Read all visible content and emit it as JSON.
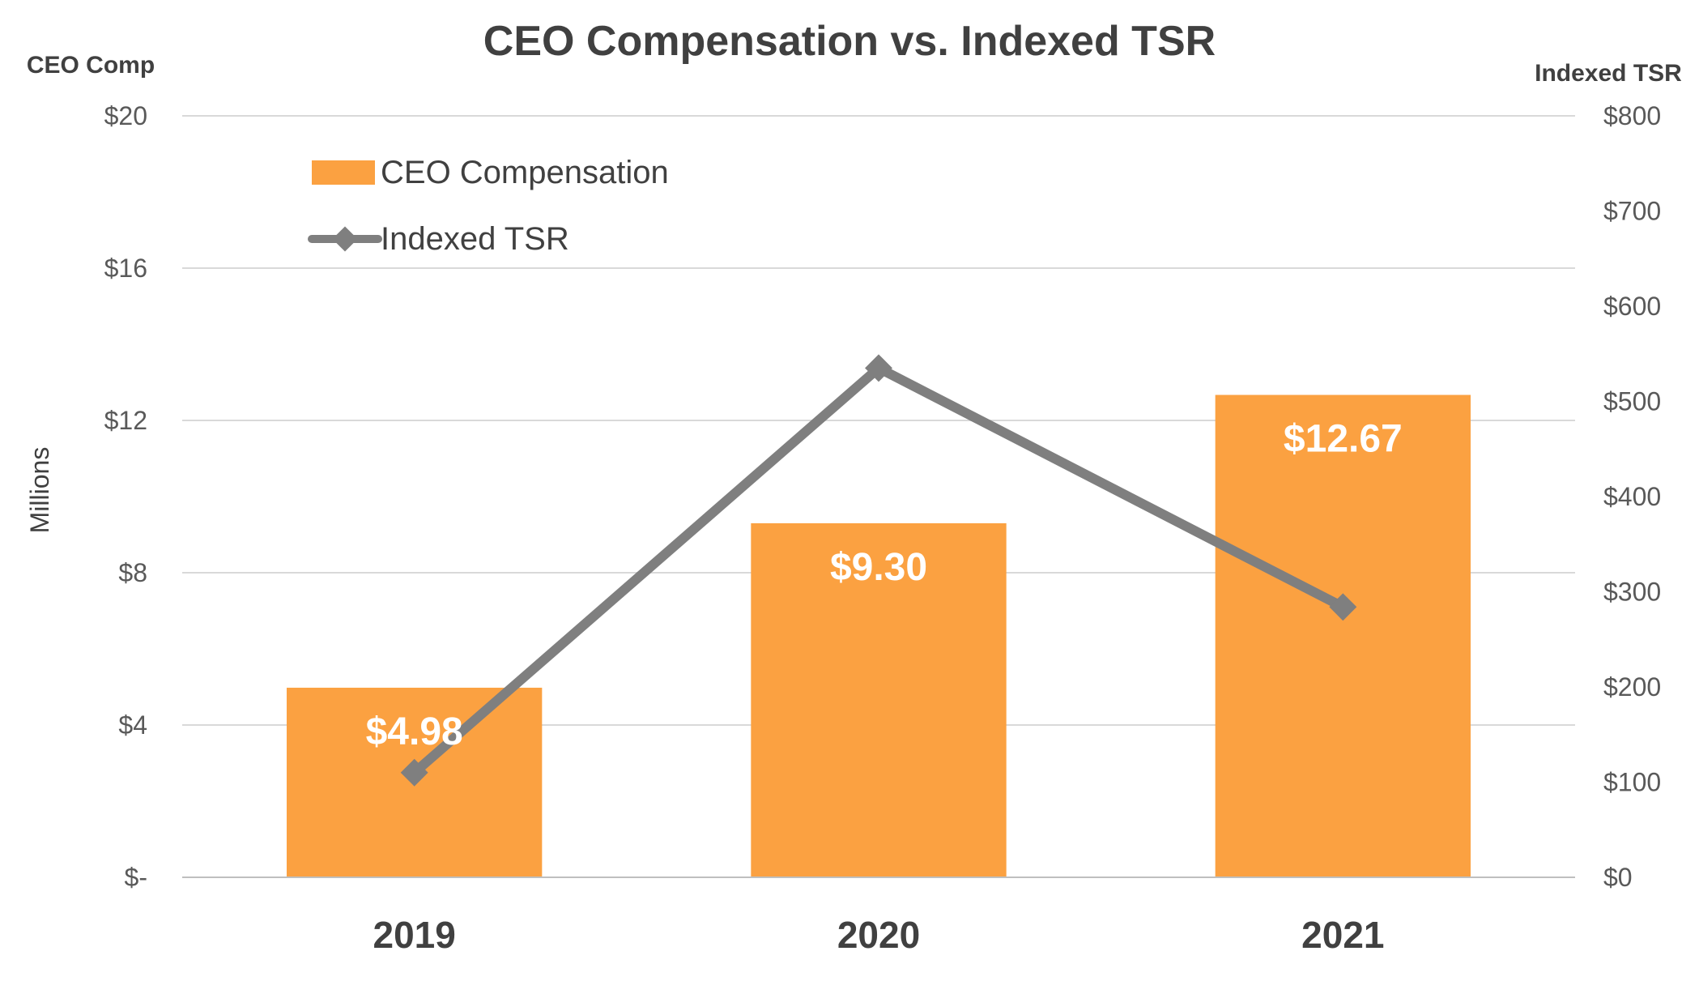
{
  "chart_data": {
    "type": "bar",
    "title": "CEO Compensation vs. Indexed TSR",
    "categories": [
      "2019",
      "2020",
      "2021"
    ],
    "left_axis": {
      "title": "CEO Comp",
      "unit_label": "Millions",
      "range": [
        0,
        20
      ],
      "ticks": [
        0,
        4,
        8,
        12,
        16,
        20
      ],
      "tick_labels": [
        "$-",
        "$4",
        "$8",
        "$12",
        "$16",
        "$20"
      ]
    },
    "right_axis": {
      "title": "Indexed TSR",
      "range": [
        0,
        800
      ],
      "ticks": [
        0,
        100,
        200,
        300,
        400,
        500,
        600,
        700,
        800
      ],
      "tick_labels": [
        "$0",
        "$100",
        "$200",
        "$300",
        "$400",
        "$500",
        "$600",
        "$700",
        "$800"
      ]
    },
    "series": [
      {
        "name": "CEO Compensation",
        "kind": "bar",
        "axis": "left",
        "values": [
          4.98,
          9.3,
          12.67
        ],
        "data_labels": [
          "$4.98",
          "$9.30",
          "$12.67"
        ],
        "color": "#FBA141"
      },
      {
        "name": "Indexed TSR",
        "kind": "line",
        "axis": "right",
        "values": [
          110,
          535,
          284
        ],
        "color": "#7F7F7F"
      }
    ],
    "grid": true,
    "legend_position": "top-left"
  }
}
